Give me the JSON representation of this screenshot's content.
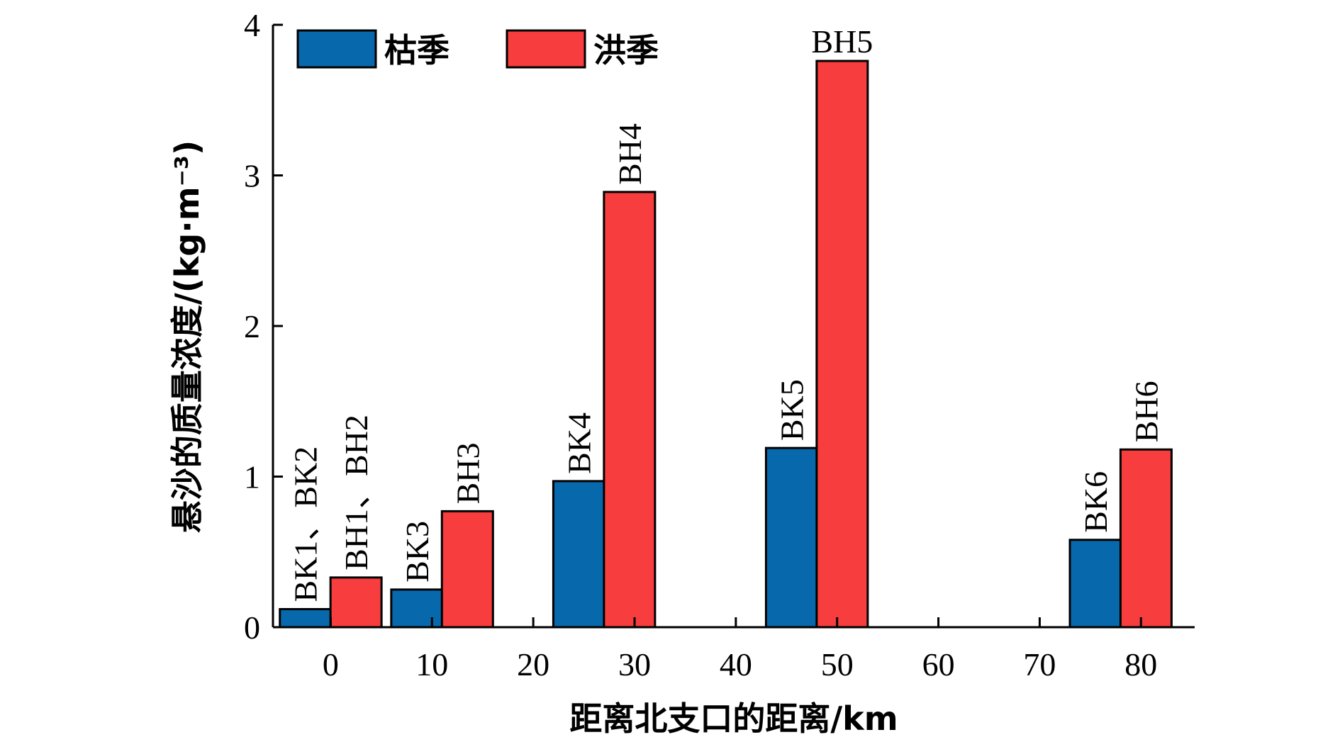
{
  "chart_data": {
    "type": "bar",
    "xlabel": "距离北支口的距离/km",
    "ylabel": "悬沙的质量浓度/(kg·m⁻³)",
    "xlim": [
      -5.7,
      85.3
    ],
    "ylim": [
      0,
      4
    ],
    "xticks": [
      0,
      10,
      20,
      30,
      40,
      50,
      60,
      70,
      80
    ],
    "yticks": [
      0,
      1,
      2,
      3,
      4
    ],
    "legend_position": "top-left",
    "series": [
      {
        "name": "枯季",
        "color": "#0868AC",
        "points": [
          {
            "x": -2.5,
            "value": 0.12,
            "label": "BK1、BK2"
          },
          {
            "x": 8.5,
            "value": 0.25,
            "label": "BK3"
          },
          {
            "x": 24.5,
            "value": 0.97,
            "label": "BK4"
          },
          {
            "x": 45.5,
            "value": 1.19,
            "label": "BK5"
          },
          {
            "x": 75.5,
            "value": 0.58,
            "label": "BK6"
          }
        ]
      },
      {
        "name": "洪季",
        "color": "#F73D3D",
        "points": [
          {
            "x": 2.5,
            "value": 0.33,
            "label": "BH1、BH2"
          },
          {
            "x": 13.5,
            "value": 0.77,
            "label": "BH3"
          },
          {
            "x": 29.5,
            "value": 2.89,
            "label": "BH4"
          },
          {
            "x": 50.5,
            "value": 3.76,
            "label": "BH5",
            "label_orientation": "horizontal"
          },
          {
            "x": 80.5,
            "value": 1.18,
            "label": "BH6"
          }
        ]
      }
    ]
  }
}
